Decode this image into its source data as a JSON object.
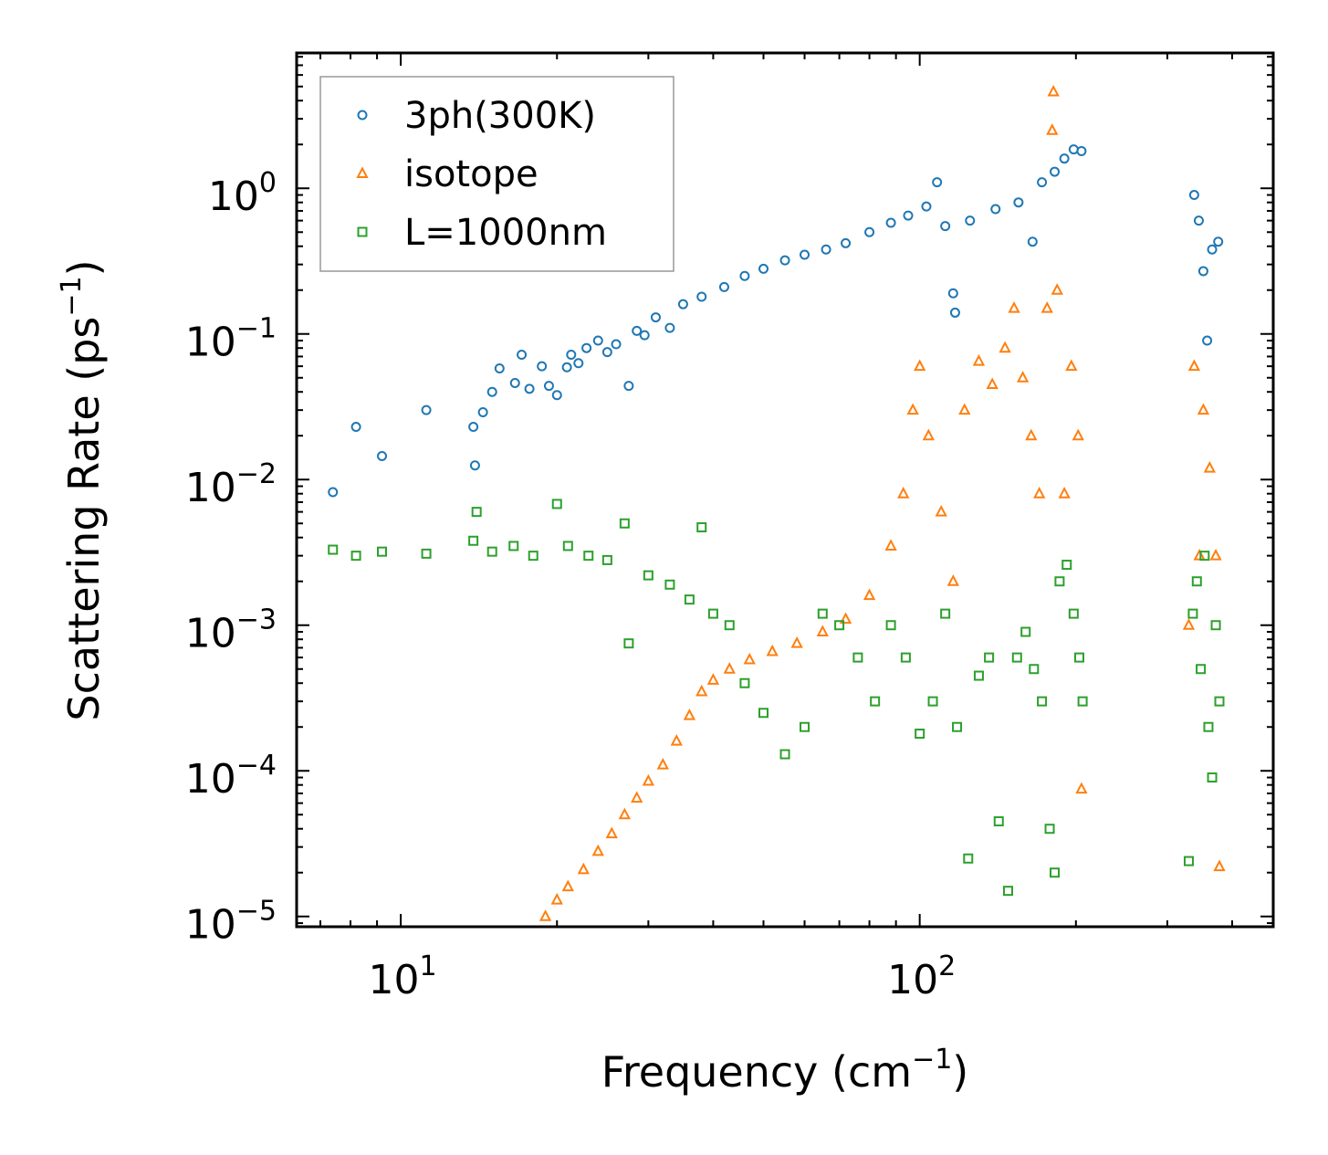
{
  "chart_data": {
    "type": "scatter",
    "xscale": "log",
    "yscale": "log",
    "xlim": [
      6.3,
      480
    ],
    "ylim": [
      8.5e-06,
      8.5
    ],
    "xlabel_main": "Frequency (cm",
    "xlabel_sup": "−1",
    "xlabel_end": ")",
    "ylabel_main": "Scattering Rate (ps",
    "ylabel_sup": "−1",
    "ylabel_end": ")",
    "x_ticks": [
      {
        "value": 10,
        "base": "10",
        "exp": "1"
      },
      {
        "value": 100,
        "base": "10",
        "exp": "2"
      }
    ],
    "y_ticks": [
      {
        "value": 1,
        "base": "10",
        "exp": "0"
      },
      {
        "value": 0.1,
        "base": "10",
        "exp": "−1"
      },
      {
        "value": 0.01,
        "base": "10",
        "exp": "−2"
      },
      {
        "value": 0.001,
        "base": "10",
        "exp": "−3"
      },
      {
        "value": 0.0001,
        "base": "10",
        "exp": "−4"
      },
      {
        "value": 1e-05,
        "base": "10",
        "exp": "−5"
      }
    ],
    "legend_position": "top-left",
    "series": [
      {
        "name": "3ph(300K)",
        "marker": "circle",
        "color": "#1f77b4",
        "points": [
          [
            7.4,
            0.0082
          ],
          [
            8.2,
            0.023
          ],
          [
            9.2,
            0.0145
          ],
          [
            11.2,
            0.03
          ],
          [
            13.8,
            0.023
          ],
          [
            13.9,
            0.0125
          ],
          [
            14.4,
            0.029
          ],
          [
            15.0,
            0.04
          ],
          [
            15.5,
            0.058
          ],
          [
            16.6,
            0.046
          ],
          [
            17.1,
            0.072
          ],
          [
            17.7,
            0.042
          ],
          [
            18.7,
            0.06
          ],
          [
            19.3,
            0.044
          ],
          [
            20.0,
            0.038
          ],
          [
            20.9,
            0.059
          ],
          [
            21.3,
            0.072
          ],
          [
            22.0,
            0.063
          ],
          [
            22.8,
            0.08
          ],
          [
            24.0,
            0.09
          ],
          [
            25.0,
            0.075
          ],
          [
            26.0,
            0.085
          ],
          [
            27.5,
            0.044
          ],
          [
            28.5,
            0.105
          ],
          [
            29.5,
            0.098
          ],
          [
            31.0,
            0.13
          ],
          [
            33.0,
            0.11
          ],
          [
            35.0,
            0.16
          ],
          [
            38.0,
            0.18
          ],
          [
            42.0,
            0.21
          ],
          [
            46.0,
            0.25
          ],
          [
            50.0,
            0.28
          ],
          [
            55.0,
            0.32
          ],
          [
            60.0,
            0.35
          ],
          [
            66.0,
            0.38
          ],
          [
            72.0,
            0.42
          ],
          [
            80.0,
            0.5
          ],
          [
            88.0,
            0.58
          ],
          [
            95.0,
            0.65
          ],
          [
            103.0,
            0.75
          ],
          [
            108.0,
            1.1
          ],
          [
            112.0,
            0.55
          ],
          [
            116.0,
            0.19
          ],
          [
            117.0,
            0.14
          ],
          [
            125.0,
            0.6
          ],
          [
            140.0,
            0.72
          ],
          [
            155.0,
            0.8
          ],
          [
            165.0,
            0.43
          ],
          [
            172.0,
            1.1
          ],
          [
            182.0,
            1.3
          ],
          [
            190.0,
            1.6
          ],
          [
            198.0,
            1.85
          ],
          [
            205.0,
            1.8
          ],
          [
            338.0,
            0.9
          ],
          [
            345.0,
            0.6
          ],
          [
            352.0,
            0.27
          ],
          [
            358.0,
            0.09
          ],
          [
            366.0,
            0.38
          ],
          [
            376.0,
            0.43
          ]
        ]
      },
      {
        "name": "isotope",
        "marker": "triangle",
        "color": "#ff7f0e",
        "points": [
          [
            19.0,
            1e-05
          ],
          [
            20.0,
            1.3e-05
          ],
          [
            21.0,
            1.6e-05
          ],
          [
            22.5,
            2.1e-05
          ],
          [
            24.0,
            2.8e-05
          ],
          [
            25.5,
            3.7e-05
          ],
          [
            27.0,
            5e-05
          ],
          [
            28.5,
            6.5e-05
          ],
          [
            30.0,
            8.5e-05
          ],
          [
            32.0,
            0.00011
          ],
          [
            34.0,
            0.00016
          ],
          [
            36.0,
            0.00024
          ],
          [
            38.0,
            0.00035
          ],
          [
            40.0,
            0.00042
          ],
          [
            43.0,
            0.0005
          ],
          [
            47.0,
            0.00058
          ],
          [
            52.0,
            0.00066
          ],
          [
            58.0,
            0.00075
          ],
          [
            65.0,
            0.0009
          ],
          [
            72.0,
            0.0011
          ],
          [
            80.0,
            0.0016
          ],
          [
            88.0,
            0.0035
          ],
          [
            93.0,
            0.008
          ],
          [
            97.0,
            0.03
          ],
          [
            100.0,
            0.06
          ],
          [
            104.0,
            0.02
          ],
          [
            110.0,
            0.006
          ],
          [
            116.0,
            0.002
          ],
          [
            122.0,
            0.03
          ],
          [
            130.0,
            0.065
          ],
          [
            138.0,
            0.045
          ],
          [
            146.0,
            0.08
          ],
          [
            152.0,
            0.15
          ],
          [
            158.0,
            0.05
          ],
          [
            164.0,
            0.02
          ],
          [
            170.0,
            0.008
          ],
          [
            176.0,
            0.15
          ],
          [
            180.0,
            2.5
          ],
          [
            181.0,
            4.6
          ],
          [
            184.0,
            0.2
          ],
          [
            190.0,
            0.008
          ],
          [
            196.0,
            0.06
          ],
          [
            202.0,
            0.02
          ],
          [
            205.0,
            7.5e-05
          ],
          [
            330.0,
            0.001
          ],
          [
            338.0,
            0.06
          ],
          [
            346.0,
            0.003
          ],
          [
            352.0,
            0.03
          ],
          [
            362.0,
            0.012
          ],
          [
            372.0,
            0.003
          ],
          [
            378.0,
            2.2e-05
          ]
        ]
      },
      {
        "name": "L=1000nm",
        "marker": "square",
        "color": "#2ca02c",
        "points": [
          [
            7.4,
            0.0033
          ],
          [
            8.2,
            0.003
          ],
          [
            9.2,
            0.0032
          ],
          [
            11.2,
            0.0031
          ],
          [
            13.8,
            0.0038
          ],
          [
            14.0,
            0.006
          ],
          [
            15.0,
            0.0032
          ],
          [
            16.5,
            0.0035
          ],
          [
            18.0,
            0.003
          ],
          [
            20.0,
            0.0068
          ],
          [
            21.0,
            0.0035
          ],
          [
            23.0,
            0.003
          ],
          [
            25.0,
            0.0028
          ],
          [
            27.0,
            0.005
          ],
          [
            27.5,
            0.00075
          ],
          [
            30.0,
            0.0022
          ],
          [
            33.0,
            0.0019
          ],
          [
            36.0,
            0.0015
          ],
          [
            38.0,
            0.0047
          ],
          [
            40.0,
            0.0012
          ],
          [
            43.0,
            0.001
          ],
          [
            46.0,
            0.0004
          ],
          [
            50.0,
            0.00025
          ],
          [
            55.0,
            0.00013
          ],
          [
            60.0,
            0.0002
          ],
          [
            65.0,
            0.0012
          ],
          [
            70.0,
            0.001
          ],
          [
            76.0,
            0.0006
          ],
          [
            82.0,
            0.0003
          ],
          [
            88.0,
            0.001
          ],
          [
            94.0,
            0.0006
          ],
          [
            100.0,
            0.00018
          ],
          [
            106.0,
            0.0003
          ],
          [
            112.0,
            0.0012
          ],
          [
            118.0,
            0.0002
          ],
          [
            124.0,
            2.5e-05
          ],
          [
            130.0,
            0.00045
          ],
          [
            136.0,
            0.0006
          ],
          [
            142.0,
            4.5e-05
          ],
          [
            148.0,
            1.5e-05
          ],
          [
            154.0,
            0.0006
          ],
          [
            160.0,
            0.0009
          ],
          [
            166.0,
            0.0005
          ],
          [
            172.0,
            0.0003
          ],
          [
            178.0,
            4e-05
          ],
          [
            182.0,
            2e-05
          ],
          [
            186.0,
            0.002
          ],
          [
            192.0,
            0.0026
          ],
          [
            198.0,
            0.0012
          ],
          [
            203.0,
            0.0006
          ],
          [
            206.0,
            0.0003
          ],
          [
            330.0,
            2.4e-05
          ],
          [
            336.0,
            0.0012
          ],
          [
            342.0,
            0.002
          ],
          [
            348.0,
            0.0005
          ],
          [
            354.0,
            0.003
          ],
          [
            360.0,
            0.0002
          ],
          [
            366.0,
            9e-05
          ],
          [
            372.0,
            0.001
          ],
          [
            378.0,
            0.0003
          ]
        ]
      }
    ]
  }
}
